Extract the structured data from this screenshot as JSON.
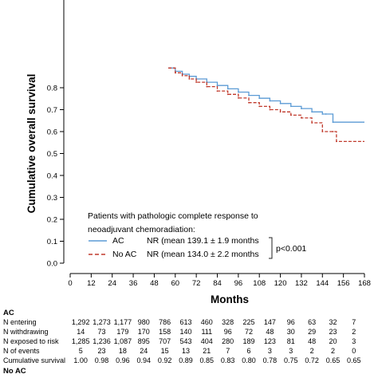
{
  "chart_data": {
    "type": "line",
    "step": true,
    "ylabel": "Cumulative overall survival",
    "xlabel": "Months",
    "xlim": [
      0,
      168
    ],
    "ylim": [
      0,
      0.9
    ],
    "x_ticks": [
      "0",
      "12",
      "24",
      "36",
      "48",
      "60",
      "72",
      "84",
      "96",
      "108",
      "120",
      "132",
      "144",
      "156",
      "168"
    ],
    "y_ticks": [
      "0.0",
      "0.1",
      "0.2",
      "0.3",
      "0.4",
      "0.5",
      "0.6",
      "0.7",
      "0.8"
    ],
    "legend": {
      "title_line1": "Patients with pathologic complete response to",
      "title_line2": "neoadjuvant chemoradiation:",
      "p_value": "p<0.001",
      "placement": "lower-left"
    },
    "series": [
      {
        "name": "AC",
        "legend_text": "NR (mean 139.1 ± 1.9 months",
        "color": "#5b9bd5",
        "dash": false,
        "x": [
          56,
          60,
          64,
          68,
          72,
          78,
          84,
          90,
          96,
          102,
          108,
          114,
          120,
          126,
          132,
          138,
          144,
          146,
          150,
          168
        ],
        "y": [
          0.89,
          0.875,
          0.862,
          0.852,
          0.84,
          0.825,
          0.81,
          0.795,
          0.78,
          0.765,
          0.752,
          0.74,
          0.728,
          0.715,
          0.705,
          0.69,
          0.68,
          0.68,
          0.643,
          0.643
        ]
      },
      {
        "name": "No AC",
        "legend_text": "NR (mean 134.0 ± 2.2 months",
        "color": "#c0392b",
        "dash": true,
        "x": [
          56,
          60,
          64,
          68,
          72,
          78,
          84,
          90,
          96,
          102,
          108,
          114,
          120,
          126,
          132,
          138,
          144,
          150,
          152,
          168
        ],
        "y": [
          0.89,
          0.868,
          0.855,
          0.84,
          0.825,
          0.805,
          0.785,
          0.77,
          0.753,
          0.732,
          0.715,
          0.7,
          0.69,
          0.675,
          0.662,
          0.64,
          0.6,
          0.6,
          0.555,
          0.555
        ]
      }
    ]
  },
  "table": {
    "ac_heading": "AC",
    "no_ac_heading": "No AC",
    "rows": [
      {
        "label": "N entering",
        "values": [
          "1,292",
          "1,273",
          "1,177",
          "980",
          "786",
          "613",
          "460",
          "328",
          "225",
          "147",
          "96",
          "63",
          "32",
          "7"
        ]
      },
      {
        "label": "N withdrawing",
        "values": [
          "14",
          "73",
          "179",
          "170",
          "158",
          "140",
          "111",
          "96",
          "72",
          "48",
          "30",
          "29",
          "23",
          "2"
        ]
      },
      {
        "label": "N exposed to risk",
        "values": [
          "1,285",
          "1,236",
          "1,087",
          "895",
          "707",
          "543",
          "404",
          "280",
          "189",
          "123",
          "81",
          "48",
          "20",
          "3"
        ]
      },
      {
        "label": "N of events",
        "values": [
          "5",
          "23",
          "18",
          "24",
          "15",
          "13",
          "21",
          "7",
          "6",
          "3",
          "3",
          "2",
          "2",
          "0"
        ]
      },
      {
        "label": "Cumulative survival",
        "values": [
          "1.00",
          "0.98",
          "0.96",
          "0.94",
          "0.92",
          "0.89",
          "0.85",
          "0.83",
          "0.80",
          "0.78",
          "0.75",
          "0.72",
          "0.65",
          "0.65"
        ]
      }
    ]
  }
}
